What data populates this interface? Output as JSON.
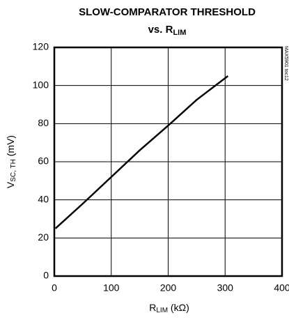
{
  "chart_data": {
    "type": "line",
    "title": {
      "line1": "SLOW-COMPARATOR THRESHOLD",
      "line2": "vs. R",
      "line2_sub": "LIM"
    },
    "x_label": {
      "text": "R",
      "sub": "LIM",
      "unit": " (kΩ)"
    },
    "y_label": {
      "text": "V",
      "sub": "SC, TH",
      "unit": " (mV)"
    },
    "watermark": "MAX5901 toc12",
    "series": [
      {
        "color": "#000000",
        "x": [
          2,
          50,
          100,
          150,
          200,
          250,
          305
        ],
        "values": [
          25,
          38,
          52,
          66,
          79,
          92.5,
          105
        ]
      }
    ],
    "xlim": [
      0,
      400
    ],
    "xticks": [
      0,
      100,
      200,
      300,
      400
    ],
    "ylim": [
      0,
      120
    ],
    "yticks": [
      0,
      20,
      40,
      60,
      80,
      100,
      120
    ],
    "grid": true
  }
}
